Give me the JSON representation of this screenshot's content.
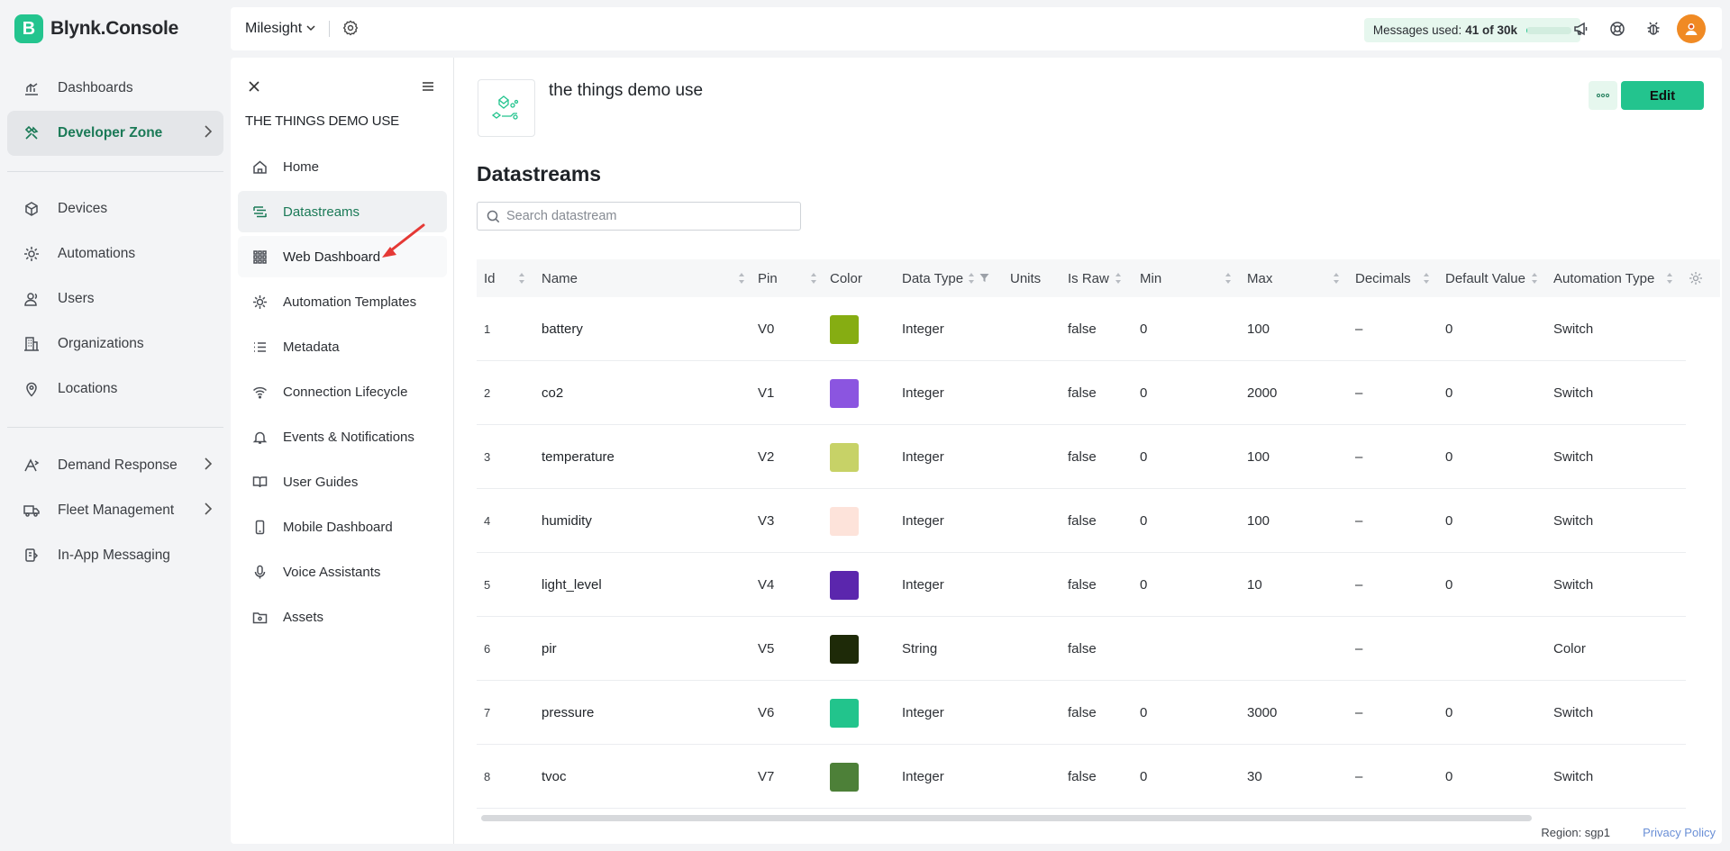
{
  "brand": {
    "logo_letter": "B",
    "name": "Blynk.Console",
    "color": "#23c48e"
  },
  "main_nav": {
    "items": [
      {
        "label": "Dashboards",
        "icon": "bar-chart-icon"
      },
      {
        "label": "Developer Zone",
        "icon": "tools-icon",
        "active": true,
        "has_chevron": true
      },
      {
        "label": "Devices",
        "icon": "cube-icon"
      },
      {
        "label": "Automations",
        "icon": "sun-gear-icon"
      },
      {
        "label": "Users",
        "icon": "users-icon"
      },
      {
        "label": "Organizations",
        "icon": "building-icon"
      },
      {
        "label": "Locations",
        "icon": "location-pin-icon"
      },
      {
        "label": "Demand Response",
        "icon": "demand-icon",
        "has_chevron": true
      },
      {
        "label": "Fleet Management",
        "icon": "truck-icon",
        "has_chevron": true
      },
      {
        "label": "In-App Messaging",
        "icon": "message-icon"
      }
    ]
  },
  "topbar": {
    "org_name": "Milesight",
    "messages_label": "Messages used:",
    "messages_value": "41 of 30k",
    "messages_fraction": 0.0014
  },
  "template_nav": {
    "title": "THE THINGS DEMO USE",
    "items": [
      {
        "label": "Home",
        "icon": "home-icon"
      },
      {
        "label": "Datastreams",
        "icon": "datastreams-icon",
        "active": true
      },
      {
        "label": "Web Dashboard",
        "icon": "grid-icon"
      },
      {
        "label": "Automation Templates",
        "icon": "automation-icon"
      },
      {
        "label": "Metadata",
        "icon": "list-icon"
      },
      {
        "label": "Connection Lifecycle",
        "icon": "wifi-icon"
      },
      {
        "label": "Events & Notifications",
        "icon": "bell-icon"
      },
      {
        "label": "User Guides",
        "icon": "book-icon"
      },
      {
        "label": "Mobile Dashboard",
        "icon": "phone-icon"
      },
      {
        "label": "Voice Assistants",
        "icon": "microphone-icon"
      },
      {
        "label": "Assets",
        "icon": "folder-icon"
      }
    ]
  },
  "main": {
    "template_name": "the things demo use",
    "edit_label": "Edit",
    "page_title": "Datastreams",
    "search_placeholder": "Search datastream"
  },
  "table": {
    "columns": [
      "Id",
      "Name",
      "Pin",
      "Color",
      "Data Type",
      "Units",
      "Is Raw",
      "Min",
      "Max",
      "Decimals",
      "Default Value",
      "Automation Type"
    ],
    "rows": [
      {
        "id": "1",
        "name": "battery",
        "pin": "V0",
        "color": "#86ad12",
        "data_type": "Integer",
        "units": "",
        "is_raw": "false",
        "min": "0",
        "max": "100",
        "decimals": "–",
        "default": "0",
        "automation": "Switch"
      },
      {
        "id": "2",
        "name": "co2",
        "pin": "V1",
        "color": "#8b55e0",
        "data_type": "Integer",
        "units": "",
        "is_raw": "false",
        "min": "0",
        "max": "2000",
        "decimals": "–",
        "default": "0",
        "automation": "Switch"
      },
      {
        "id": "3",
        "name": "temperature",
        "pin": "V2",
        "color": "#c7d267",
        "data_type": "Integer",
        "units": "",
        "is_raw": "false",
        "min": "0",
        "max": "100",
        "decimals": "–",
        "default": "0",
        "automation": "Switch"
      },
      {
        "id": "4",
        "name": "humidity",
        "pin": "V3",
        "color": "#fde3da",
        "data_type": "Integer",
        "units": "",
        "is_raw": "false",
        "min": "0",
        "max": "100",
        "decimals": "–",
        "default": "0",
        "automation": "Switch"
      },
      {
        "id": "5",
        "name": "light_level",
        "pin": "V4",
        "color": "#5b26ad",
        "data_type": "Integer",
        "units": "",
        "is_raw": "false",
        "min": "0",
        "max": "10",
        "decimals": "–",
        "default": "0",
        "automation": "Switch"
      },
      {
        "id": "6",
        "name": "pir",
        "pin": "V5",
        "color": "#1e2a08",
        "data_type": "String",
        "units": "",
        "is_raw": "false",
        "min": "",
        "max": "",
        "decimals": "–",
        "default": "",
        "automation": "Color"
      },
      {
        "id": "7",
        "name": "pressure",
        "pin": "V6",
        "color": "#22c48c",
        "data_type": "Integer",
        "units": "",
        "is_raw": "false",
        "min": "0",
        "max": "3000",
        "decimals": "–",
        "default": "0",
        "automation": "Switch"
      },
      {
        "id": "8",
        "name": "tvoc",
        "pin": "V7",
        "color": "#4d8038",
        "data_type": "Integer",
        "units": "",
        "is_raw": "false",
        "min": "0",
        "max": "30",
        "decimals": "–",
        "default": "0",
        "automation": "Switch"
      }
    ]
  },
  "footer": {
    "region": "Region: sgp1",
    "privacy": "Privacy Policy"
  }
}
